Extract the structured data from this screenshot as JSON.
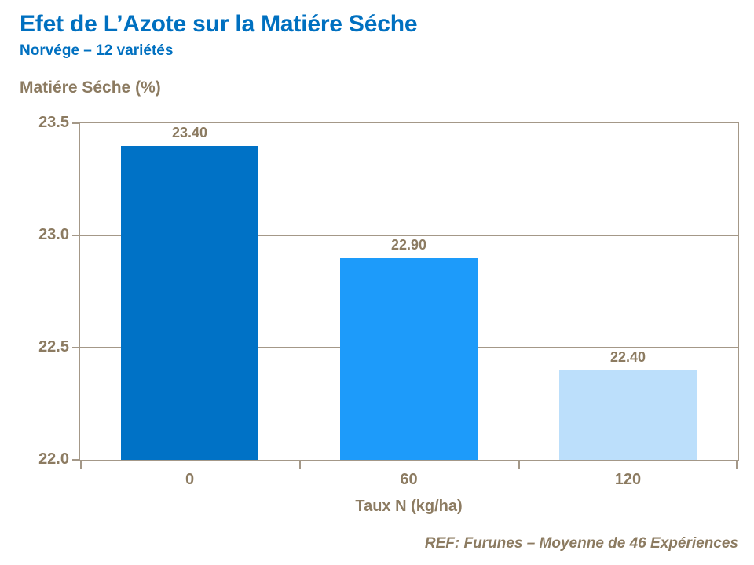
{
  "header": {
    "title": "Efet de L’Azote sur la Matiére Séche",
    "subtitle": "Norvége – 12 variétés"
  },
  "footer": {
    "reference": "REF: Furunes – Moyenne de 46 Expériences"
  },
  "colors": {
    "title_blue": "#0070C0",
    "text_brown": "#8C7B61",
    "axis_line": "#A49888",
    "background": "#FFFFFF",
    "bar_colors": [
      "#0072C6",
      "#1D9BFA",
      "#BCDFFB"
    ]
  },
  "chart_data": {
    "type": "bar",
    "title": "Efet de L’Azote sur la Matiére Séche",
    "subtitle": "Norvége – 12 variétés",
    "categories": [
      "0",
      "60",
      "120"
    ],
    "values": [
      23.4,
      22.9,
      22.4
    ],
    "value_labels": [
      "23.40",
      "22.90",
      "22.40"
    ],
    "xlabel": "Taux N (kg/ha)",
    "ylabel": "Matiére Séche (%)",
    "ylim": [
      22.0,
      23.5
    ],
    "yticks": [
      "23.5",
      "23.0",
      "22.5",
      "22.0"
    ],
    "grid": true,
    "legend": false,
    "annotation": "REF: Furunes – Moyenne de 46 Expériences"
  }
}
